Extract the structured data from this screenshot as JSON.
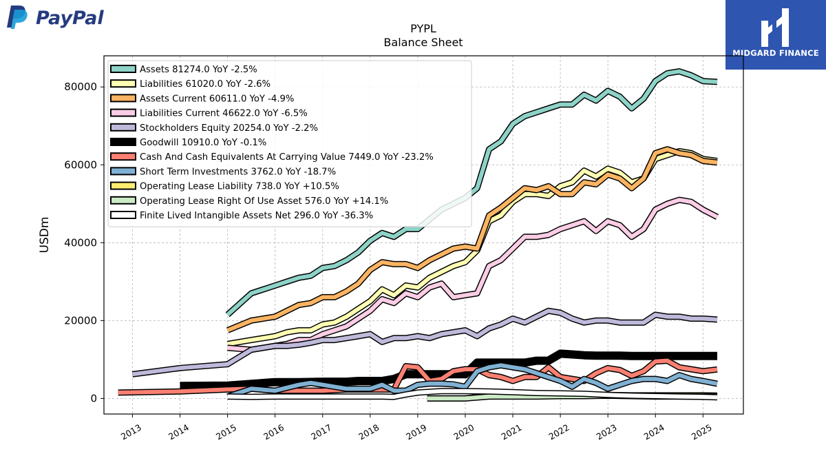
{
  "header": {
    "brand_left": "PayPal",
    "brand_right": "MIDGARD FINANCE"
  },
  "chart_data": {
    "type": "line",
    "title": "PYPL",
    "subtitle": "Balance  Sheet",
    "ylabel": "USDm",
    "xlabel": "",
    "xlim": [
      2012.4,
      2025.85
    ],
    "ylim": [
      -4000,
      88000
    ],
    "yticks": [
      0,
      20000,
      40000,
      60000,
      80000
    ],
    "xticks": [
      "2013",
      "2014",
      "2015",
      "2016",
      "2017",
      "2018",
      "2019",
      "2020",
      "2021",
      "2022",
      "2023",
      "2024",
      "2025"
    ],
    "grid": true,
    "legend_position": "top-left",
    "series": [
      {
        "name": "Assets",
        "label": "Assets  81274.0 YoY -2.5%",
        "color": "#8dd3c7",
        "width": 6,
        "x": [
          2015.0,
          2015.5,
          2016.0,
          2016.25,
          2016.5,
          2016.75,
          2017.0,
          2017.25,
          2017.5,
          2017.75,
          2018.0,
          2018.25,
          2018.5,
          2018.75,
          2019.0,
          2019.25,
          2019.5,
          2019.75,
          2020.0,
          2020.25,
          2020.5,
          2020.75,
          2021.0,
          2021.25,
          2021.5,
          2021.75,
          2022.0,
          2022.25,
          2022.5,
          2022.75,
          2023.0,
          2023.25,
          2023.5,
          2023.75,
          2024.0,
          2024.25,
          2024.5,
          2024.75,
          2025.0,
          2025.3
        ],
        "y": [
          21500,
          27000,
          29000,
          30000,
          31000,
          31500,
          33500,
          34000,
          35500,
          37500,
          40500,
          42500,
          41500,
          43500,
          43500,
          46000,
          48500,
          50000,
          51500,
          54000,
          64000,
          66000,
          70500,
          72500,
          73500,
          74500,
          75500,
          75500,
          78000,
          76500,
          79000,
          77500,
          74500,
          77000,
          81500,
          83500,
          84000,
          83000,
          81500,
          81300
        ]
      },
      {
        "name": "Liabilities",
        "label": "Liabilities  61020.0 YoY -2.6%",
        "color": "#ffffb3",
        "width": 6,
        "x": [
          2015.0,
          2015.5,
          2016.0,
          2016.25,
          2016.5,
          2016.75,
          2017.0,
          2017.25,
          2017.5,
          2017.75,
          2018.0,
          2018.25,
          2018.5,
          2018.75,
          2019.0,
          2019.25,
          2019.5,
          2019.75,
          2020.0,
          2020.25,
          2020.5,
          2020.75,
          2021.0,
          2021.25,
          2021.5,
          2021.75,
          2022.0,
          2022.25,
          2022.5,
          2022.75,
          2023.0,
          2023.25,
          2023.5,
          2023.75,
          2024.0,
          2024.25,
          2024.5,
          2024.75,
          2025.0,
          2025.3
        ],
        "y": [
          14000,
          15000,
          16000,
          17000,
          17500,
          17500,
          19000,
          19500,
          21000,
          23000,
          25000,
          28000,
          26500,
          29000,
          28500,
          31000,
          32500,
          34000,
          35000,
          38000,
          45500,
          47000,
          50500,
          52500,
          52500,
          52000,
          54500,
          55500,
          58500,
          57000,
          59000,
          58000,
          55500,
          56500,
          61500,
          62500,
          63500,
          63000,
          61500,
          61000
        ]
      },
      {
        "name": "Assets Current",
        "label": "Assets Current  60611.0 YoY -4.9%",
        "color": "#fdb462",
        "width": 6,
        "x": [
          2015.0,
          2015.5,
          2016.0,
          2016.25,
          2016.5,
          2016.75,
          2017.0,
          2017.25,
          2017.5,
          2017.75,
          2018.0,
          2018.25,
          2018.5,
          2018.75,
          2019.0,
          2019.25,
          2019.5,
          2019.75,
          2020.0,
          2020.25,
          2020.5,
          2020.75,
          2021.0,
          2021.25,
          2021.5,
          2021.75,
          2022.0,
          2022.25,
          2022.5,
          2022.75,
          2023.0,
          2023.25,
          2023.5,
          2023.75,
          2024.0,
          2024.25,
          2024.5,
          2024.75,
          2025.0,
          2025.3
        ],
        "y": [
          17500,
          20000,
          21000,
          22500,
          24000,
          24500,
          26000,
          26000,
          27500,
          29500,
          33000,
          35000,
          34500,
          34500,
          33500,
          35500,
          37000,
          38500,
          39000,
          38500,
          47000,
          49000,
          51500,
          54000,
          53500,
          54500,
          52500,
          52500,
          55500,
          55000,
          57500,
          56500,
          54000,
          56500,
          63000,
          64000,
          63000,
          62500,
          61000,
          60600
        ]
      },
      {
        "name": "Liabilities Current",
        "label": "Liabilities Current  46622.0 YoY -6.5%",
        "color": "#fccde5",
        "width": 6,
        "x": [
          2015.0,
          2015.5,
          2016.0,
          2016.25,
          2016.5,
          2016.75,
          2017.0,
          2017.25,
          2017.5,
          2017.75,
          2018.0,
          2018.25,
          2018.5,
          2018.75,
          2019.0,
          2019.25,
          2019.5,
          2019.75,
          2020.0,
          2020.25,
          2020.5,
          2020.75,
          2021.0,
          2021.25,
          2021.5,
          2021.75,
          2022.0,
          2022.25,
          2022.5,
          2022.75,
          2023.0,
          2023.25,
          2023.5,
          2023.75,
          2024.0,
          2024.25,
          2024.5,
          2024.75,
          2025.0,
          2025.3
        ],
        "y": [
          13000,
          12500,
          13500,
          14000,
          15000,
          15000,
          16500,
          17500,
          18500,
          20500,
          22500,
          25500,
          24500,
          27000,
          26000,
          28500,
          29500,
          26000,
          26500,
          27000,
          34000,
          35500,
          38500,
          41500,
          41500,
          42000,
          43500,
          44500,
          45500,
          43000,
          45500,
          44500,
          41500,
          43500,
          48500,
          50000,
          51000,
          50500,
          48500,
          46600
        ]
      },
      {
        "name": "Stockholders Equity",
        "label": "Stockholders Equity  20254.0 YoY -2.2%",
        "color": "#bebada",
        "width": 6,
        "x": [
          2013.0,
          2014.0,
          2015.0,
          2015.5,
          2016.0,
          2016.25,
          2016.5,
          2016.75,
          2017.0,
          2017.25,
          2017.5,
          2017.75,
          2018.0,
          2018.25,
          2018.5,
          2018.75,
          2019.0,
          2019.25,
          2019.5,
          2019.75,
          2020.0,
          2020.25,
          2020.5,
          2020.75,
          2021.0,
          2021.25,
          2021.5,
          2021.75,
          2022.0,
          2022.25,
          2022.5,
          2022.75,
          2023.0,
          2023.25,
          2023.5,
          2023.75,
          2024.0,
          2024.25,
          2024.5,
          2024.75,
          2025.0,
          2025.3
        ],
        "y": [
          6200,
          7800,
          8800,
          12500,
          13500,
          13500,
          13800,
          14300,
          15000,
          15000,
          15500,
          16000,
          16500,
          14500,
          15500,
          15500,
          16000,
          15500,
          16500,
          17000,
          17500,
          16000,
          18000,
          19000,
          20500,
          19500,
          21000,
          22500,
          22000,
          20500,
          19500,
          20000,
          20000,
          19500,
          19500,
          19500,
          21500,
          21000,
          21000,
          20500,
          20500,
          20250
        ]
      },
      {
        "name": "Goodwill",
        "label": "Goodwill  10910.0 YoY -0.1%",
        "color": "#000000",
        "width": 9,
        "lead_break": true,
        "x": [
          2014.0,
          2015.0,
          2016.0,
          2016.5,
          2017.0,
          2017.5,
          2017.75,
          2018.0,
          2018.25,
          2018.5,
          2018.75,
          2019.0,
          2019.25,
          2019.5,
          2019.75,
          2020.0,
          2020.25,
          2020.5,
          2020.75,
          2021.0,
          2021.25,
          2021.5,
          2021.75,
          2022.0,
          2022.25,
          2022.5,
          2022.75,
          2023.0,
          2023.25,
          2023.5,
          2023.75,
          2024.0,
          2024.25,
          2024.5,
          2024.75,
          2025.0,
          2025.3
        ],
        "y": [
          3200,
          3300,
          4200,
          4200,
          4300,
          4300,
          4500,
          4500,
          4500,
          5000,
          6200,
          6200,
          6200,
          6200,
          6200,
          6200,
          9200,
          9200,
          9200,
          9200,
          9200,
          9700,
          9700,
          11500,
          11300,
          11100,
          11000,
          11000,
          11000,
          10900,
          10900,
          10900,
          10900,
          10900,
          10900,
          10900,
          10910
        ]
      },
      {
        "name": "Cash And Cash Equivalents At Carrying Value",
        "label": "Cash And Cash Equivalents At Carrying Value  7449.0 YoY -23.2%",
        "color": "#fb8072",
        "width": 6,
        "x": [
          2012.7,
          2014.0,
          2015.0,
          2015.5,
          2016.0,
          2016.5,
          2017.0,
          2017.5,
          2018.0,
          2018.5,
          2018.75,
          2019.0,
          2019.25,
          2019.5,
          2019.75,
          2020.0,
          2020.25,
          2020.5,
          2020.75,
          2021.0,
          2021.25,
          2021.5,
          2021.75,
          2022.0,
          2022.25,
          2022.5,
          2022.75,
          2023.0,
          2023.25,
          2023.5,
          2023.75,
          2024.0,
          2024.25,
          2024.5,
          2024.75,
          2025.0,
          2025.3
        ],
        "y": [
          1500,
          1800,
          2300,
          2500,
          2000,
          2000,
          2000,
          2300,
          2300,
          2300,
          8300,
          8000,
          4500,
          5000,
          7000,
          7500,
          7500,
          6000,
          5500,
          4500,
          5500,
          5500,
          8000,
          5500,
          5000,
          4500,
          6500,
          7800,
          7300,
          5800,
          7000,
          9500,
          9700,
          8000,
          7500,
          7000,
          7450
        ]
      },
      {
        "name": "Short Term Investments",
        "label": "Short Term Investments  3762.0 YoY -18.7%",
        "color": "#80b1d3",
        "width": 6,
        "x": [
          2015.0,
          2015.5,
          2016.0,
          2016.5,
          2016.75,
          2017.0,
          2017.25,
          2017.5,
          2017.75,
          2018.0,
          2018.25,
          2018.5,
          2018.75,
          2019.0,
          2019.25,
          2019.5,
          2019.75,
          2020.0,
          2020.25,
          2020.5,
          2020.75,
          2021.0,
          2021.25,
          2021.5,
          2021.75,
          2022.0,
          2022.25,
          2022.5,
          2022.75,
          2023.0,
          2023.25,
          2023.5,
          2023.75,
          2024.0,
          2024.25,
          2024.5,
          2024.75,
          2025.0,
          2025.3
        ],
        "y": [
          500,
          2500,
          2000,
          3500,
          4000,
          3500,
          3000,
          2500,
          2500,
          2500,
          3500,
          2000,
          2000,
          3500,
          3800,
          3800,
          3600,
          3000,
          7000,
          8000,
          8500,
          8000,
          7500,
          6500,
          5500,
          4500,
          3000,
          5000,
          4000,
          2500,
          3500,
          4500,
          5000,
          5000,
          4500,
          6000,
          5000,
          4500,
          3760
        ]
      },
      {
        "name": "Operating Lease Liability",
        "label": "Operating Lease Liability  738.0 YoY +10.5%",
        "color": "#ffed6f",
        "width": 6,
        "x": [
          2019.2,
          2019.5,
          2020.0,
          2020.5,
          2021.0,
          2021.5,
          2022.0,
          2022.5,
          2023.0,
          2023.5,
          2024.0,
          2024.5,
          2025.0,
          2025.3
        ],
        "y": [
          0,
          0,
          0,
          800,
          800,
          700,
          800,
          800,
          900,
          800,
          800,
          800,
          800,
          740
        ]
      },
      {
        "name": "Operating Lease Right Of Use Asset",
        "label": "Operating Lease Right Of Use Asset  576.0 YoY +14.1%",
        "color": "#ccebc5",
        "width": 6,
        "x": [
          2019.2,
          2019.5,
          2020.0,
          2020.5,
          2021.0,
          2021.5,
          2022.0,
          2022.5,
          2023.0,
          2023.5,
          2024.0,
          2024.5,
          2025.0,
          2025.3
        ],
        "y": [
          0,
          0,
          0,
          500,
          500,
          500,
          600,
          600,
          700,
          600,
          500,
          500,
          500,
          580
        ]
      },
      {
        "name": "Finite Lived Intangible Assets Net",
        "label": "Finite Lived Intangible Assets Net  296.0 YoY -36.3%",
        "color": "#ffffff",
        "width": 6,
        "x": [
          2015.0,
          2015.5,
          2016.0,
          2016.5,
          2017.0,
          2017.5,
          2018.0,
          2018.25,
          2018.5,
          2018.75,
          2019.0,
          2019.5,
          2020.0,
          2020.5,
          2021.0,
          2021.5,
          2022.0,
          2022.5,
          2023.0,
          2023.5,
          2024.0,
          2024.5,
          2025.0,
          2025.3
        ],
        "y": [
          500,
          400,
          500,
          500,
          500,
          500,
          500,
          500,
          400,
          1000,
          1500,
          1900,
          1900,
          1800,
          1600,
          1400,
          1300,
          1200,
          900,
          700,
          600,
          500,
          400,
          300
        ]
      }
    ]
  }
}
